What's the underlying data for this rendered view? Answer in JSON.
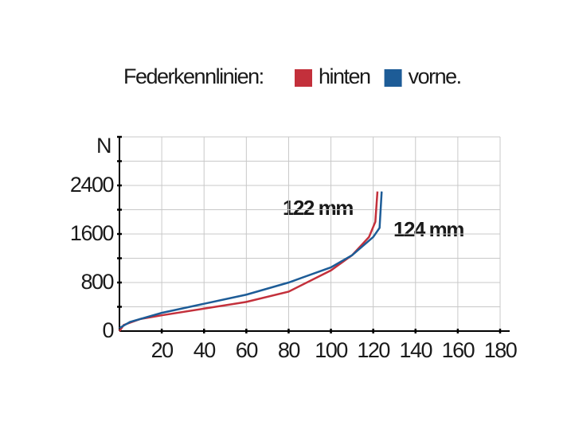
{
  "chart_data": {
    "type": "line",
    "title": "Federkennlinien:",
    "y_label": "N",
    "series": [
      {
        "name": "hinten",
        "color": "#c3303b",
        "x": [
          0,
          2,
          10,
          20,
          40,
          60,
          80,
          100,
          110,
          118,
          121,
          122
        ],
        "values": [
          0,
          100,
          200,
          260,
          370,
          480,
          650,
          1000,
          1250,
          1550,
          1800,
          2300
        ]
      },
      {
        "name": "vorne.",
        "color": "#1d5c97",
        "x": [
          0,
          5,
          20,
          40,
          60,
          80,
          100,
          110,
          120,
          123,
          124
        ],
        "values": [
          50,
          150,
          300,
          450,
          600,
          800,
          1050,
          1250,
          1550,
          1700,
          2300
        ]
      }
    ],
    "annotations": [
      "122 mm",
      "124 mm"
    ],
    "xlim": [
      0,
      180
    ],
    "xticks": [
      20,
      40,
      60,
      80,
      100,
      120,
      140,
      160,
      180
    ],
    "ylim": [
      0,
      3200
    ],
    "yticks": [
      0,
      800,
      1600,
      2400
    ],
    "ygrid": [
      400,
      800,
      1200,
      1600,
      2000,
      2400,
      2800,
      3200
    ],
    "grid": true
  }
}
